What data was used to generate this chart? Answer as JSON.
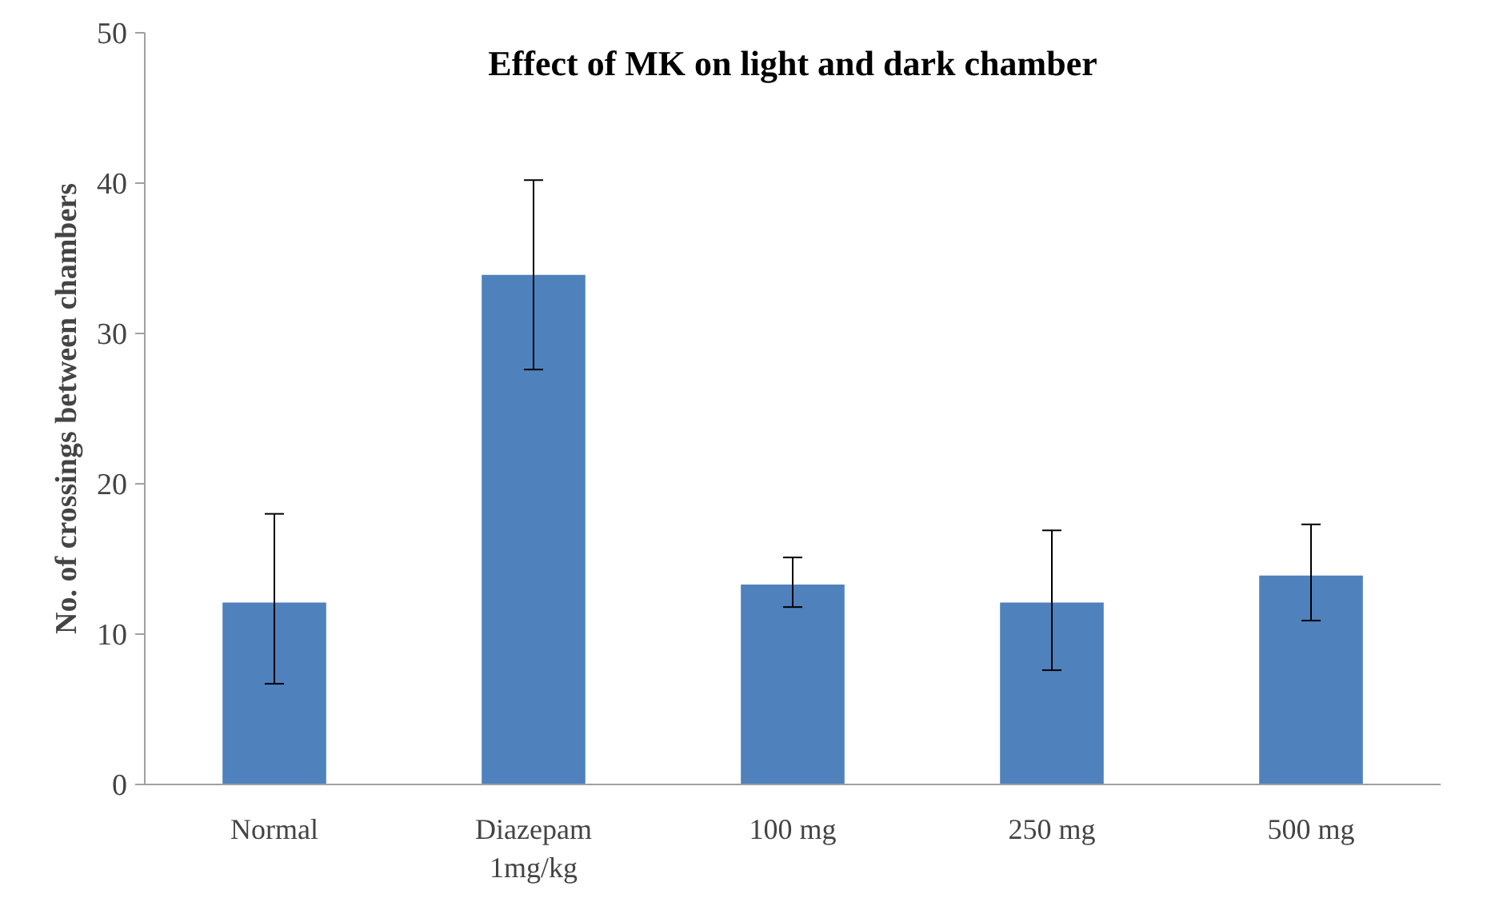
{
  "chart_data": {
    "type": "bar",
    "title": "Effect of MK on light and dark chamber",
    "ylabel": "No. of crossings between chambers",
    "categories": [
      "Normal",
      "Diazepam\n1mg/kg",
      "100 mg",
      "250 mg",
      "500 mg"
    ],
    "values": [
      12.1,
      33.9,
      13.3,
      12.1,
      13.9
    ],
    "errors": [
      [
        6.7,
        18.0
      ],
      [
        27.6,
        40.2
      ],
      [
        11.8,
        15.1
      ],
      [
        7.6,
        16.9
      ],
      [
        10.9,
        17.3
      ]
    ],
    "color": "#4f81bd",
    "ylim": [
      0,
      50
    ],
    "yticks": [
      0,
      10,
      20,
      30,
      40,
      50
    ],
    "grid": false
  }
}
